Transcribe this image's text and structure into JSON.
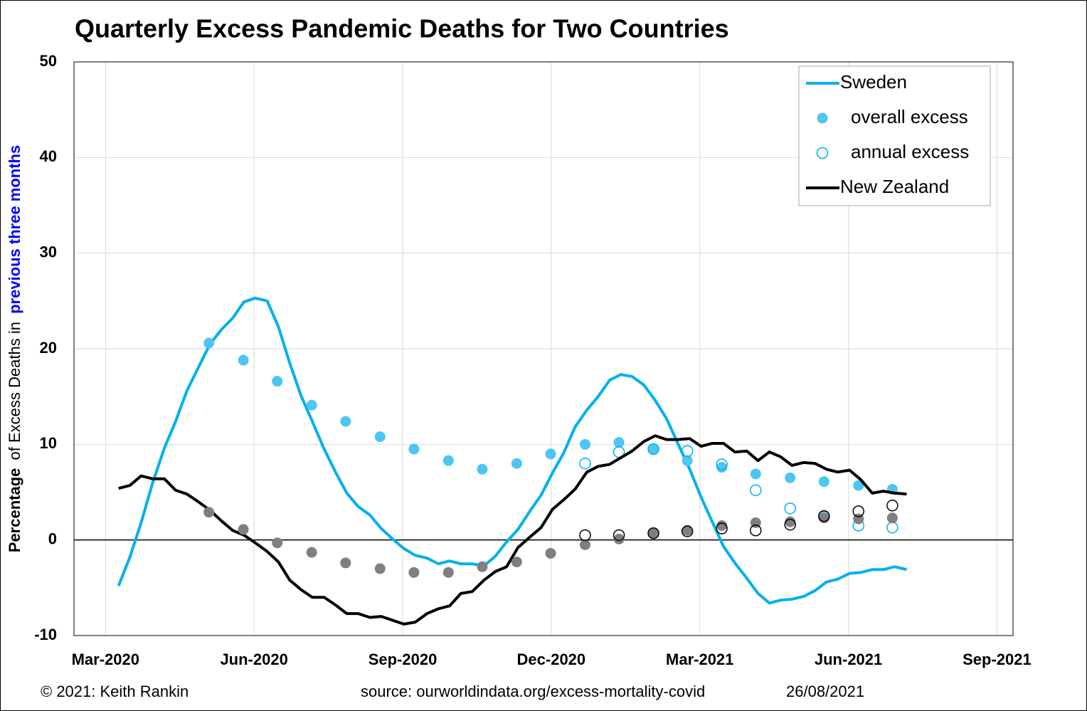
{
  "chart_data": {
    "type": "line",
    "title": "Quarterly Excess Pandemic Deaths for Two Countries",
    "y_label": [
      "Percentage",
      "of Excess Deaths in",
      "previous three months"
    ],
    "footnotes": [
      "© 2021: Keith Rankin",
      "source: ourworldindata.org/excess-mortality-covid",
      "26/08/2021"
    ],
    "xlim": [
      2020.114,
      2021.694
    ],
    "xticks": [
      {
        "value": 2020.167,
        "label": "Mar-2020"
      },
      {
        "value": 2020.417,
        "label": "Jun-2020"
      },
      {
        "value": 2020.667,
        "label": "Sep-2020"
      },
      {
        "value": 2020.917,
        "label": "Dec-2020"
      },
      {
        "value": 2021.167,
        "label": "Mar-2021"
      },
      {
        "value": 2021.417,
        "label": "Jun-2021"
      },
      {
        "value": 2021.667,
        "label": "Sep-2021"
      }
    ],
    "ylim": [
      -10,
      50
    ],
    "yticks": [
      -10,
      0,
      10,
      20,
      30,
      40,
      50
    ],
    "grid": true,
    "legend": "top-right",
    "series": [
      {
        "name": "Sweden",
        "type": "line",
        "color": "#00b0f0",
        "x": [
          2020.189,
          2020.208,
          2020.227,
          2020.246,
          2020.266,
          2020.285,
          2020.304,
          2020.323,
          2020.343,
          2020.362,
          2020.381,
          2020.4,
          2020.419,
          2020.439,
          2020.458,
          2020.477,
          2020.496,
          2020.515,
          2020.535,
          2020.554,
          2020.573,
          2020.592,
          2020.612,
          2020.631,
          2020.65,
          2020.669,
          2020.688,
          2020.708,
          2020.727,
          2020.746,
          2020.765,
          2020.784,
          2020.804,
          2020.823,
          2020.842,
          2020.861,
          2020.881,
          2020.9,
          2020.919,
          2020.938,
          2020.957,
          2020.977,
          2020.996,
          2021.015,
          2021.034,
          2021.053,
          2021.073,
          2021.092,
          2021.111,
          2021.13,
          2021.15,
          2021.169,
          2021.188,
          2021.207,
          2021.226,
          2021.246,
          2021.265,
          2021.284,
          2021.303,
          2021.322,
          2021.342,
          2021.361,
          2021.38,
          2021.399,
          2021.419,
          2021.438,
          2021.457,
          2021.476,
          2021.495,
          2021.515
        ],
        "values": [
          -4.8,
          -1.8,
          1.8,
          5.9,
          9.6,
          12.4,
          15.6,
          18.0,
          20.5,
          22.0,
          23.2,
          24.9,
          25.3,
          25.0,
          22.3,
          18.5,
          15.1,
          12.4,
          9.5,
          7.1,
          4.9,
          3.5,
          2.6,
          1.2,
          0.1,
          -0.9,
          -1.6,
          -1.9,
          -2.5,
          -2.2,
          -2.5,
          -2.5,
          -2.7,
          -1.7,
          -0.2,
          1.1,
          3.0,
          4.7,
          7.0,
          9.1,
          11.8,
          13.6,
          15.0,
          16.7,
          17.3,
          17.1,
          16.2,
          14.6,
          12.7,
          10.1,
          7.4,
          4.5,
          1.9,
          -0.7,
          -2.4,
          -4.0,
          -5.6,
          -6.6,
          -6.3,
          -6.2,
          -5.9,
          -5.3,
          -4.4,
          -4.1,
          -3.5,
          -3.4,
          -3.1,
          -3.1,
          -2.8,
          -3.1
        ]
      },
      {
        "name": "overall excess",
        "type": "scatter",
        "marker": "filled",
        "color": "#4dc6f2",
        "x": [
          2020.341,
          2020.399,
          2020.456,
          2020.514,
          2020.571,
          2020.629,
          2020.686,
          2020.744,
          2020.801,
          2020.859,
          2020.916,
          2020.974,
          2021.031,
          2021.089,
          2021.146,
          2021.204,
          2021.261,
          2021.319,
          2021.376,
          2021.434,
          2021.491
        ],
        "values": [
          20.6,
          18.8,
          16.6,
          14.1,
          12.4,
          10.8,
          9.5,
          8.3,
          7.4,
          8.0,
          9.0,
          10.0,
          10.2,
          9.5,
          8.3,
          7.6,
          6.9,
          6.5,
          6.1,
          5.7,
          5.3
        ]
      },
      {
        "name": "annual excess",
        "type": "scatter",
        "marker": "hollow",
        "color": "#00b0f0",
        "x": [
          2020.974,
          2021.031,
          2021.089,
          2021.146,
          2021.204,
          2021.261,
          2021.319,
          2021.376,
          2021.434,
          2021.491
        ],
        "values": [
          8.0,
          9.2,
          9.5,
          9.3,
          7.9,
          5.2,
          3.3,
          2.4,
          1.5,
          1.3
        ]
      },
      {
        "name": "New Zealand",
        "type": "line",
        "color": "#000000",
        "x": [
          2020.189,
          2020.208,
          2020.227,
          2020.246,
          2020.266,
          2020.285,
          2020.304,
          2020.323,
          2020.343,
          2020.362,
          2020.381,
          2020.4,
          2020.419,
          2020.439,
          2020.458,
          2020.477,
          2020.496,
          2020.515,
          2020.535,
          2020.554,
          2020.573,
          2020.592,
          2020.612,
          2020.631,
          2020.65,
          2020.669,
          2020.688,
          2020.708,
          2020.727,
          2020.746,
          2020.765,
          2020.784,
          2020.804,
          2020.823,
          2020.842,
          2020.861,
          2020.881,
          2020.9,
          2020.919,
          2020.938,
          2020.957,
          2020.977,
          2020.996,
          2021.015,
          2021.034,
          2021.053,
          2021.073,
          2021.092,
          2021.111,
          2021.13,
          2021.15,
          2021.169,
          2021.188,
          2021.207,
          2021.226,
          2021.246,
          2021.265,
          2021.284,
          2021.303,
          2021.322,
          2021.342,
          2021.361,
          2021.38,
          2021.399,
          2021.419,
          2021.438,
          2021.457,
          2021.476,
          2021.495,
          2021.515
        ],
        "values": [
          5.4,
          5.7,
          6.7,
          6.4,
          6.4,
          5.2,
          4.8,
          4.0,
          3.1,
          2.0,
          1.0,
          0.5,
          -0.3,
          -1.2,
          -2.3,
          -4.2,
          -5.2,
          -6.0,
          -6.0,
          -6.8,
          -7.7,
          -7.7,
          -8.1,
          -8.0,
          -8.4,
          -8.8,
          -8.6,
          -7.7,
          -7.2,
          -6.9,
          -5.6,
          -5.4,
          -4.2,
          -3.3,
          -2.8,
          -0.8,
          0.3,
          1.3,
          3.2,
          4.2,
          5.3,
          7.1,
          7.7,
          7.9,
          8.6,
          9.3,
          10.3,
          10.9,
          10.5,
          10.5,
          10.6,
          9.8,
          10.1,
          10.1,
          9.2,
          9.3,
          8.3,
          9.2,
          8.7,
          7.8,
          8.1,
          8.0,
          7.4,
          7.1,
          7.3,
          6.3,
          4.9,
          5.1,
          4.9,
          4.8
        ]
      },
      {
        "type": "scatter",
        "marker": "filled",
        "color": "#7f7f7f",
        "x": [
          2020.341,
          2020.399,
          2020.456,
          2020.514,
          2020.571,
          2020.629,
          2020.686,
          2020.744,
          2020.801,
          2020.859,
          2020.916,
          2020.974,
          2021.031,
          2021.089,
          2021.146,
          2021.204,
          2021.261,
          2021.319,
          2021.376,
          2021.434,
          2021.491
        ],
        "values": [
          2.9,
          1.1,
          -0.3,
          -1.3,
          -2.4,
          -3.0,
          -3.4,
          -3.4,
          -2.8,
          -2.3,
          -1.4,
          -0.5,
          0.1,
          0.7,
          1.0,
          1.5,
          1.8,
          1.9,
          2.3,
          2.2,
          2.3
        ]
      },
      {
        "type": "scatter",
        "marker": "hollow",
        "color": "#000000",
        "x": [
          2020.974,
          2021.031,
          2021.089,
          2021.146,
          2021.204,
          2021.261,
          2021.319,
          2021.376,
          2021.434,
          2021.491
        ],
        "values": [
          0.5,
          0.5,
          0.7,
          0.9,
          1.2,
          1.0,
          1.6,
          2.5,
          3.0,
          3.6
        ]
      }
    ]
  }
}
